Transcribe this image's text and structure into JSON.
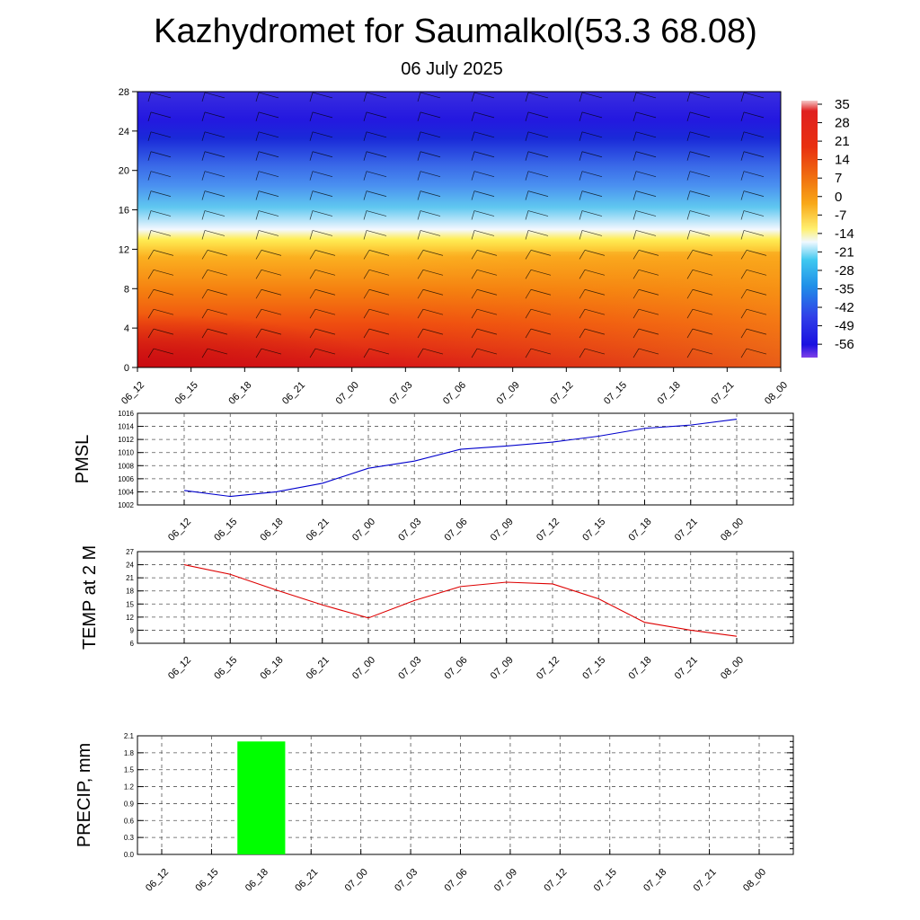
{
  "title": "Kazhydromet for Saumalkol(53.3 68.08)",
  "subtitle": "06 July 2025",
  "time_labels": [
    "06_12",
    "06_15",
    "06_18",
    "06_21",
    "07_00",
    "07_03",
    "07_06",
    "07_09",
    "07_12",
    "07_15",
    "07_18",
    "07_21",
    "08_00"
  ],
  "colorbar": {
    "labels": [
      "35",
      "28",
      "21",
      "14",
      "7",
      "0",
      "-7",
      "-14",
      "-21",
      "-28",
      "-35",
      "-42",
      "-49",
      "-56"
    ]
  },
  "colors": {
    "pmsl_line": "#0000cc",
    "temp_line": "#dd0000",
    "precip_bar": "#00ff00"
  },
  "chart_data": [
    {
      "type": "heatmap",
      "ylim": [
        0,
        28
      ],
      "yticks": [
        0,
        4,
        8,
        12,
        16,
        20,
        24,
        28
      ],
      "categories": [
        "06_12",
        "06_15",
        "06_18",
        "06_21",
        "07_00",
        "07_03",
        "07_06",
        "07_09",
        "07_12",
        "07_15",
        "07_18",
        "07_21",
        "08_00"
      ],
      "freezing_level": [
        13,
        13,
        13,
        12.9,
        12.9,
        12.8,
        12.7,
        12.6,
        12.5,
        12.3,
        12.2,
        12.1,
        12.0
      ],
      "surface_temp": [
        24,
        22,
        18,
        15,
        12,
        16,
        19,
        20,
        20,
        16,
        11,
        9,
        8
      ],
      "top_temp": -56,
      "colorbar_range": [
        -56,
        35
      ]
    },
    {
      "type": "line",
      "ylabel": "PMSL",
      "ylim": [
        1002,
        1016
      ],
      "yticks": [
        1002,
        1004,
        1006,
        1008,
        1010,
        1012,
        1014,
        1016
      ],
      "x": [
        "06_12",
        "06_15",
        "06_18",
        "06_21",
        "07_00",
        "07_03",
        "07_06",
        "07_09",
        "07_12",
        "07_15",
        "07_18",
        "07_21",
        "08_00"
      ],
      "values": [
        1004.2,
        1003.3,
        1004.0,
        1005.3,
        1007.6,
        1008.7,
        1010.5,
        1011.0,
        1011.6,
        1012.5,
        1013.7,
        1014.2,
        1015.1
      ]
    },
    {
      "type": "line",
      "ylabel": "TEMP at 2 M",
      "ylim": [
        6,
        27
      ],
      "yticks": [
        6,
        9,
        12,
        15,
        18,
        21,
        24,
        27
      ],
      "x": [
        "06_12",
        "06_15",
        "06_18",
        "06_21",
        "07_00",
        "07_03",
        "07_06",
        "07_09",
        "07_12",
        "07_15",
        "07_18",
        "07_21",
        "08_00"
      ],
      "values": [
        24.0,
        21.8,
        18.2,
        14.8,
        11.8,
        15.8,
        19.0,
        20.0,
        19.6,
        16.2,
        10.8,
        9.0,
        7.6
      ]
    },
    {
      "type": "bar",
      "ylabel": "PRECIP, mm",
      "ylim": [
        0,
        2.1
      ],
      "yticks": [
        "0.0",
        "0.3",
        "0.6",
        "0.9",
        "1.2",
        "1.5",
        "1.8",
        "2.1"
      ],
      "categories": [
        "06_12",
        "06_15",
        "06_18",
        "06_21",
        "07_00",
        "07_03",
        "07_06",
        "07_09",
        "07_12",
        "07_15",
        "07_18",
        "07_21",
        "08_00"
      ],
      "values": [
        0,
        0,
        2.0,
        0,
        0,
        0,
        0,
        0,
        0,
        0,
        0,
        0,
        0
      ]
    }
  ]
}
